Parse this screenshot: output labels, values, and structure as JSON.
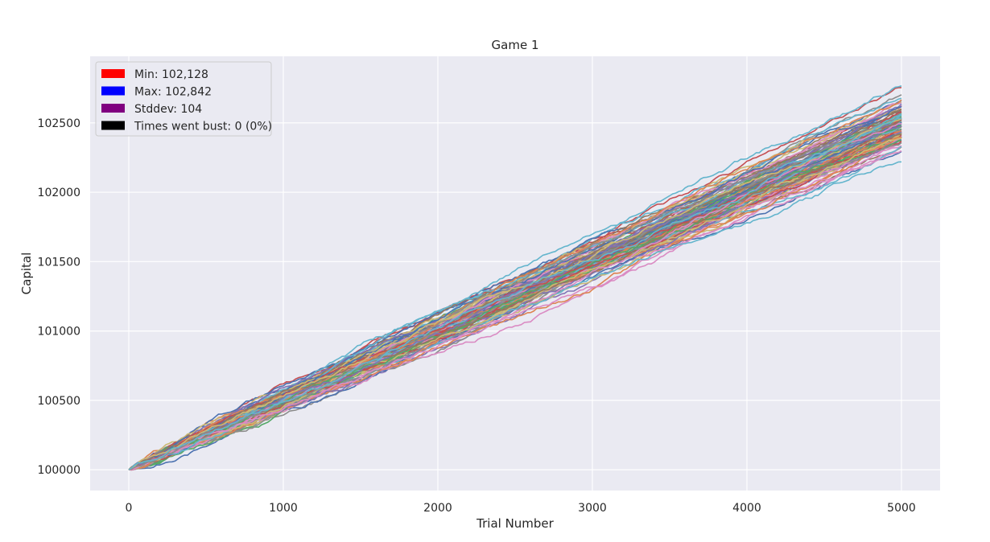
{
  "chart_data": {
    "type": "line",
    "title": "Game 1",
    "xlabel": "Trial Number",
    "ylabel": "Capital",
    "xlim": [
      -250,
      5250
    ],
    "ylim": [
      99850,
      102980
    ],
    "xticks": [
      0,
      1000,
      2000,
      3000,
      4000,
      5000
    ],
    "yticks": [
      100000,
      100500,
      101000,
      101500,
      102000,
      102500
    ],
    "grid": true,
    "legend_position": "top-left",
    "legend": [
      {
        "label": "Min: 102,128",
        "color": "#ff0000"
      },
      {
        "label": "Max: 102,842",
        "color": "#0000ff"
      },
      {
        "label": "Stddev: 104",
        "color": "#800080"
      },
      {
        "label": "Times went bust: 0 (0%)",
        "color": "#000000"
      }
    ],
    "series_summary": {
      "x_start": 0,
      "x_end": 5000,
      "start_value": 100000,
      "final_min": 102128,
      "final_max": 102842,
      "final_stddev": 104
    },
    "series_colors": [
      "#4c72b0",
      "#dd8452",
      "#55a868",
      "#c44e52",
      "#8172b3",
      "#937860",
      "#da8bc3",
      "#8c8c8c",
      "#ccb974",
      "#64b5cd"
    ],
    "background_color": "#eaeaf2",
    "grid_color": "#ffffff"
  }
}
